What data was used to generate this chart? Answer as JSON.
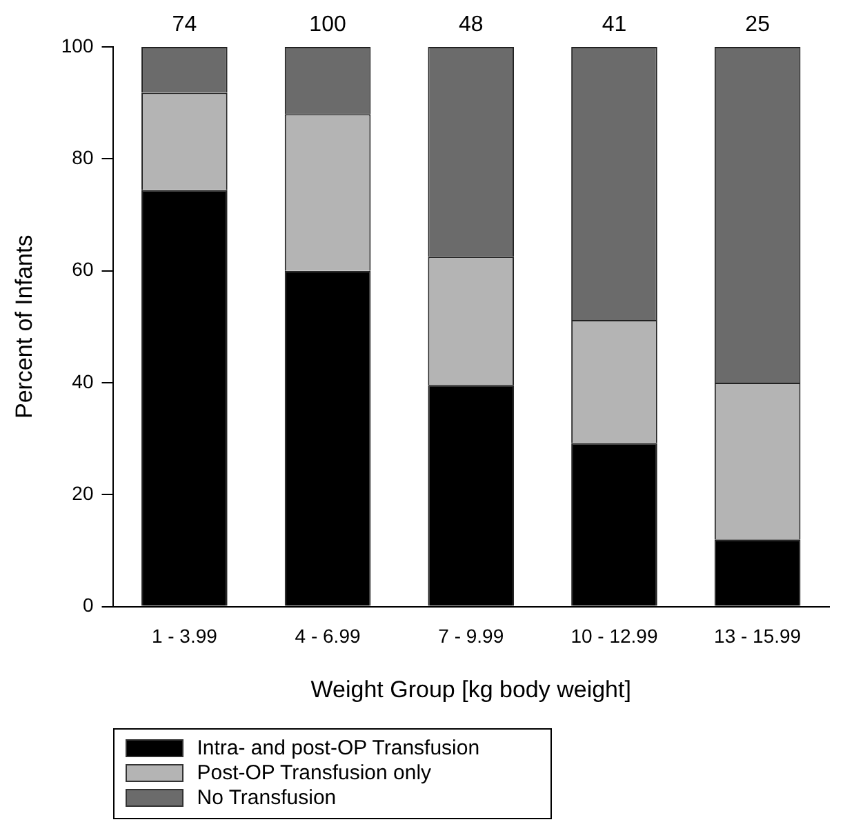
{
  "chart_data": {
    "type": "bar",
    "stacked": true,
    "xlabel": "Weight Group [kg body weight]",
    "ylabel": "Percent of Infants",
    "categories": [
      "1 - 3.99",
      "4 - 6.99",
      "7 - 9.99",
      "10 - 12.99",
      "13 - 15.99"
    ],
    "series": [
      {
        "name": "Intra- and post-OP Transfusion",
        "color": "#000000",
        "values": [
          74.4,
          60,
          39.6,
          29.2,
          12
        ]
      },
      {
        "name": "Post-OP Transfusion only",
        "color": "#b4b4b4",
        "values": [
          17.4,
          28,
          22.9,
          22,
          28
        ]
      },
      {
        "name": "No Transfusion",
        "color": "#6b6b6b",
        "values": [
          8.2,
          12,
          37.5,
          48.8,
          60
        ]
      }
    ],
    "ylim": [
      0,
      100
    ],
    "yticks": [
      0,
      20,
      40,
      60,
      80,
      100
    ],
    "grid": false,
    "legend": "bottom left",
    "annotations": [
      {
        "text": "74",
        "x": "1 - 3.99",
        "y": 100
      },
      {
        "text": "100",
        "x": "4 - 6.99",
        "y": 100
      },
      {
        "text": "48",
        "x": "7 - 9.99",
        "y": 100
      },
      {
        "text": "41",
        "x": "10 - 12.99",
        "y": 100
      },
      {
        "text": "25",
        "x": "13 - 15.99",
        "y": 100
      }
    ]
  }
}
